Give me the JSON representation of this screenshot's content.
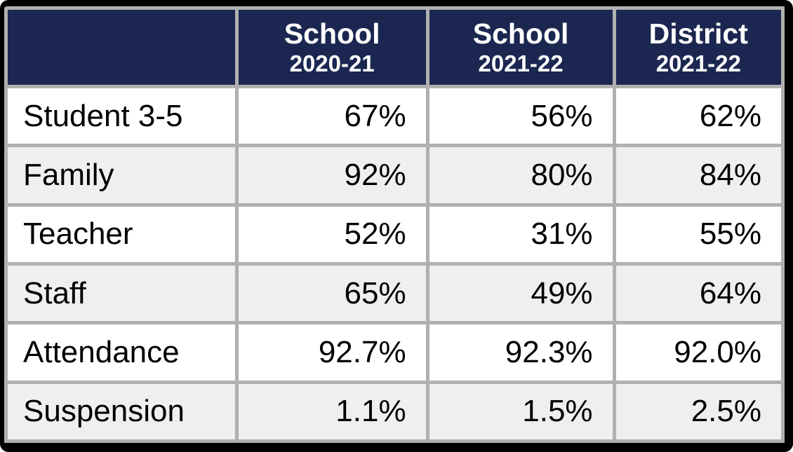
{
  "table": {
    "columns": [
      {
        "line1": "",
        "line2": ""
      },
      {
        "line1": "School",
        "line2": "2020-21"
      },
      {
        "line1": "School",
        "line2": "2021-22"
      },
      {
        "line1": "District",
        "line2": "2021-22"
      }
    ],
    "rows": [
      {
        "label": "Student 3-5",
        "values": [
          "67%",
          "56%",
          "62%"
        ]
      },
      {
        "label": "Family",
        "values": [
          "92%",
          "80%",
          "84%"
        ]
      },
      {
        "label": "Teacher",
        "values": [
          "52%",
          "31%",
          "55%"
        ]
      },
      {
        "label": "Staff",
        "values": [
          "65%",
          "49%",
          "64%"
        ]
      },
      {
        "label": "Attendance",
        "values": [
          "92.7%",
          "92.3%",
          "92.0%"
        ]
      },
      {
        "label": "Suspension",
        "values": [
          "1.1%",
          "1.5%",
          "2.5%"
        ]
      }
    ],
    "colors": {
      "header_bg": "#1b2750",
      "header_text": "#ffffff",
      "row_bg": "#ffffff",
      "row_alt_bg": "#efefef",
      "grid_border": "#b0b0b0",
      "outer_border": "#000000",
      "body_text": "#000000"
    }
  },
  "chart_data": {
    "type": "table",
    "title": "",
    "columns": [
      "",
      "School 2020-21",
      "School 2021-22",
      "District 2021-22"
    ],
    "rows": [
      [
        "Student 3-5",
        "67%",
        "56%",
        "62%"
      ],
      [
        "Family",
        "92%",
        "80%",
        "84%"
      ],
      [
        "Teacher",
        "52%",
        "31%",
        "55%"
      ],
      [
        "Staff",
        "65%",
        "49%",
        "64%"
      ],
      [
        "Attendance",
        "92.7%",
        "92.3%",
        "92.0%"
      ],
      [
        "Suspension",
        "1.1%",
        "1.5%",
        "2.5%"
      ]
    ]
  }
}
